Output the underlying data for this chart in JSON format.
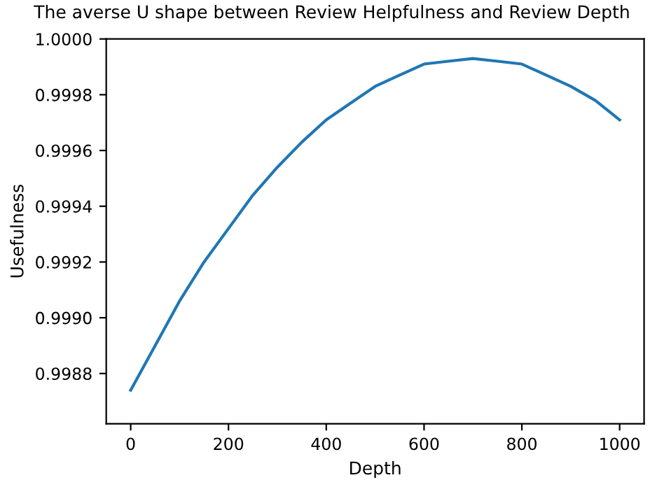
{
  "chart_data": {
    "type": "line",
    "title": "The averse U shape between Review Helpfulness and Review Depth",
    "xlabel": "Depth",
    "ylabel": "Usefulness",
    "x": [
      0,
      50,
      100,
      150,
      200,
      250,
      300,
      350,
      400,
      450,
      500,
      550,
      600,
      650,
      700,
      750,
      800,
      850,
      900,
      950,
      1000
    ],
    "series": [
      {
        "color": "#1f77b4",
        "values": [
          0.99874,
          0.9989,
          0.99906,
          0.9992,
          0.99932,
          0.99944,
          0.99954,
          0.99963,
          0.99971,
          0.99977,
          0.99983,
          0.99987,
          0.99991,
          0.99992,
          0.99993,
          0.99992,
          0.99991,
          0.99987,
          0.99983,
          0.99978,
          0.99971
        ]
      }
    ],
    "xlim": [
      -50,
      1050
    ],
    "ylim": [
      0.99862,
      1.0
    ],
    "xticks": [
      0,
      200,
      400,
      600,
      800,
      1000
    ],
    "yticks": [
      {
        "value": 0.9988,
        "label": "0.9988"
      },
      {
        "value": 0.999,
        "label": "0.9990"
      },
      {
        "value": 0.9992,
        "label": "0.9992"
      },
      {
        "value": 0.9994,
        "label": "0.9994"
      },
      {
        "value": 0.9996,
        "label": "0.9996"
      },
      {
        "value": 0.9998,
        "label": "0.9998"
      },
      {
        "value": 1.0,
        "label": "1.0000"
      }
    ],
    "grid": false,
    "legend": false,
    "marker": "none",
    "line_style": "solid"
  }
}
